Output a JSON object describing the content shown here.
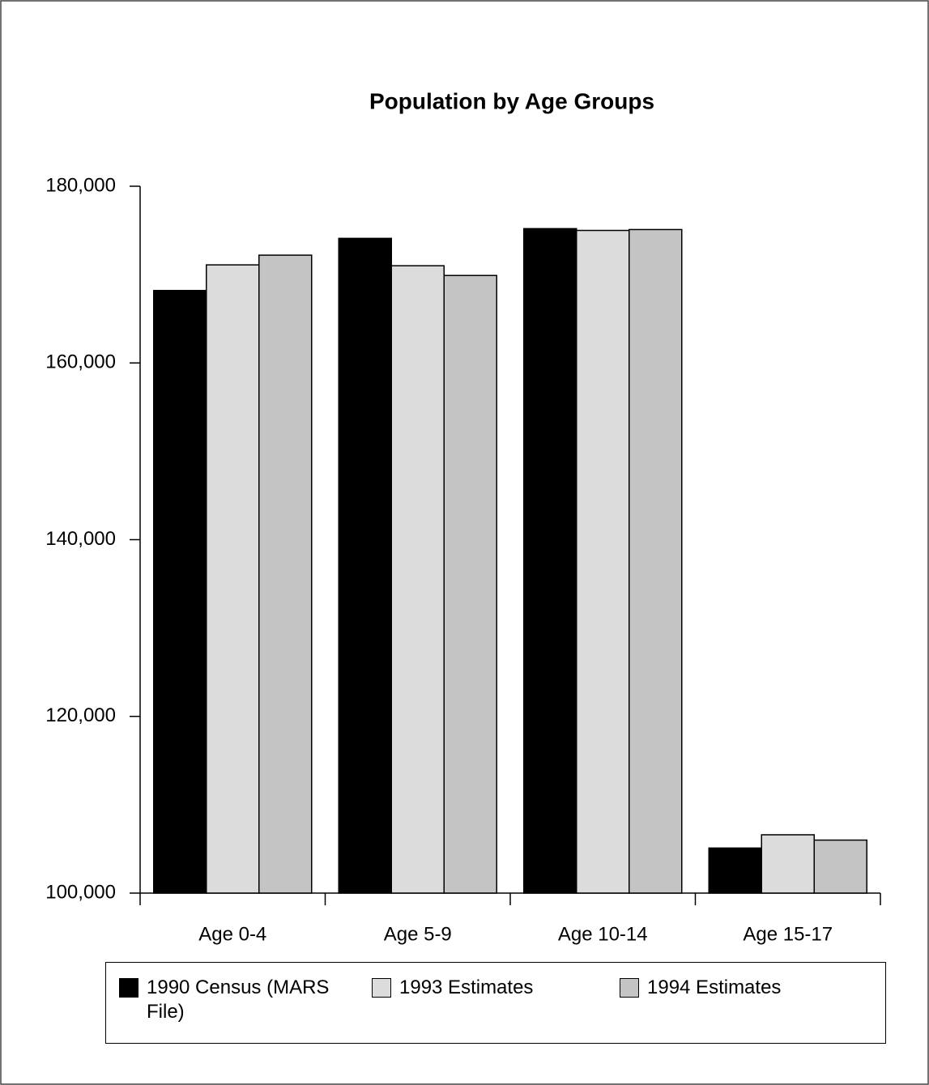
{
  "chart_data": {
    "type": "bar",
    "title": "Population by Age Groups",
    "categories": [
      "Age 0-4",
      "Age 5-9",
      "Age 10-14",
      "Age 15-17"
    ],
    "series": [
      {
        "name": "1990 Census (MARS File)",
        "color": "#000000",
        "values": [
          168200,
          174100,
          175200,
          105100
        ]
      },
      {
        "name": "1993 Estimates",
        "color": "#dcdcdc",
        "values": [
          171100,
          171000,
          175000,
          106600
        ]
      },
      {
        "name": "1994 Estimates",
        "color": "#c4c4c4",
        "values": [
          172200,
          169900,
          175100,
          106000
        ]
      }
    ],
    "ylim": [
      100000,
      180000
    ],
    "yticks": [
      {
        "value": 100000,
        "label": "100,000"
      },
      {
        "value": 120000,
        "label": "120,000"
      },
      {
        "value": 140000,
        "label": "140,000"
      },
      {
        "value": 160000,
        "label": "160,000"
      },
      {
        "value": 180000,
        "label": "180,000"
      }
    ],
    "grid": false
  }
}
